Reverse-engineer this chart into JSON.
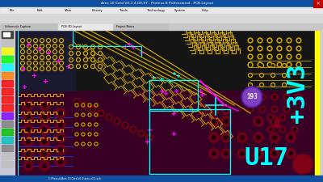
{
  "title_bar": "Ares 10 Card V0-1 4-09-97 - Proteus 8 Professional - PCB Layout",
  "yellow_trace": "#c8a000",
  "cyan_color": "#00ffff",
  "magenta_color": "#ff00ff",
  "dark_bg": "#181818",
  "maroon_bg": "#3a0020",
  "left_sidebar_bg": "#c8c8d8",
  "toolbar_bg": "#d0d0d0",
  "titlebar_bg": "#1050a0",
  "statusbar_bg": "#1050a0",
  "yellow_bar": "#ffff00",
  "purple_fill": "#8040b0",
  "purple_light": "#a060d0",
  "dark_red_pad": "#800020",
  "dark_navy": "#000040"
}
